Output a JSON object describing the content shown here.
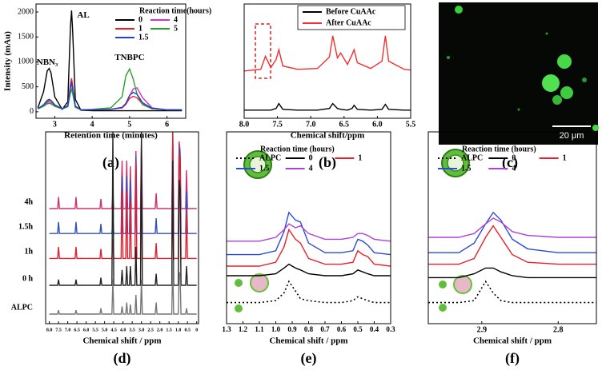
{
  "chart_data": [
    {
      "type": "line",
      "panel_label": "(a)",
      "xlabel": "Retention time (minutes)",
      "ylabel": "Intensity (mAu)",
      "xlim": [
        2.5,
        6.5
      ],
      "xticks": [
        3,
        4,
        5,
        6
      ],
      "ylim": [
        -130,
        2160
      ],
      "yticks": [
        0,
        500,
        1000,
        1500,
        2000
      ],
      "legend": "upper right",
      "legend_title": "Reaction time(hours)",
      "legend_columns": 2,
      "annotations": [
        "NBN₃",
        "AL",
        "TNBPC"
      ],
      "x": [
        2.55,
        2.7,
        2.8,
        2.85,
        2.9,
        3.0,
        3.2,
        3.35,
        3.42,
        3.45,
        3.48,
        3.55,
        3.7,
        4.0,
        4.5,
        4.8,
        4.9,
        5.0,
        5.1,
        5.2,
        5.35,
        5.6,
        6.0,
        6.4
      ],
      "series": [
        {
          "name": "0",
          "color": "#000000",
          "values": [
            80,
            400,
            820,
            870,
            780,
            300,
            50,
            200,
            1700,
            2030,
            1600,
            250,
            30,
            20,
            20,
            20,
            20,
            20,
            20,
            20,
            20,
            20,
            20,
            20
          ]
        },
        {
          "name": "4",
          "color": "#cc33cc",
          "values": [
            60,
            110,
            160,
            170,
            160,
            110,
            60,
            110,
            470,
            560,
            440,
            100,
            40,
            40,
            50,
            80,
            150,
            320,
            460,
            480,
            280,
            80,
            40,
            40
          ]
        },
        {
          "name": "1",
          "color": "#e8202a",
          "values": [
            60,
            130,
            210,
            230,
            220,
            130,
            60,
            120,
            550,
            670,
            520,
            110,
            40,
            40,
            50,
            80,
            150,
            270,
            310,
            280,
            150,
            60,
            40,
            40
          ]
        },
        {
          "name": "5",
          "color": "#2ca02c",
          "values": [
            60,
            110,
            180,
            200,
            180,
            110,
            60,
            100,
            380,
            450,
            360,
            90,
            40,
            50,
            80,
            300,
            720,
            860,
            650,
            350,
            140,
            60,
            40,
            40
          ]
        },
        {
          "name": "1.5",
          "color": "#2040d0",
          "values": [
            60,
            140,
            230,
            250,
            230,
            140,
            60,
            120,
            500,
            600,
            470,
            110,
            40,
            40,
            50,
            90,
            170,
            330,
            390,
            350,
            180,
            70,
            40,
            40
          ]
        }
      ]
    },
    {
      "type": "line",
      "panel_label": "(b)",
      "xlabel": "Chemical shift/ppm",
      "xlim": [
        8.0,
        5.5
      ],
      "xticks": [
        {
          "value": 8,
          "label": "8.0"
        },
        7.5,
        {
          "value": 7,
          "label": "7.0"
        },
        6.5,
        {
          "value": 6,
          "label": "6.0"
        },
        5.5
      ],
      "ylim": [
        0,
        140
      ],
      "legend": "upper right",
      "legend_columns": 1,
      "x": [
        8.0,
        7.75,
        7.68,
        7.6,
        7.52,
        7.48,
        7.42,
        7.2,
        6.9,
        6.72,
        6.67,
        6.6,
        6.55,
        6.45,
        6.38,
        6.35,
        6.3,
        6.1,
        5.93,
        5.88,
        5.83,
        5.6,
        5.5
      ],
      "series": [
        {
          "name": "Before CuAAc",
          "color": "#000000",
          "values": [
            10,
            10,
            10,
            10,
            12,
            18,
            11,
            10,
            10,
            12,
            18,
            12,
            11,
            10,
            12,
            16,
            11,
            10,
            11,
            17,
            11,
            10,
            10
          ]
        },
        {
          "name": "After CuAAc",
          "color": "#f03030",
          "values": [
            58,
            60,
            76,
            62,
            72,
            84,
            64,
            60,
            61,
            75,
            101,
            74,
            80,
            66,
            78,
            84,
            68,
            61,
            70,
            101,
            70,
            60,
            59
          ]
        }
      ]
    },
    {
      "type": "line",
      "panel_label": "(d)",
      "xlabel": "Chemical shift / ppm",
      "xlim": [
        8.2,
        -0.1
      ],
      "xticks": [
        {
          "value": 8,
          "label": "8.0"
        },
        7.5,
        {
          "value": 7,
          "label": "7.0"
        },
        6.5,
        {
          "value": 6,
          "label": "6.0"
        },
        5.5,
        {
          "value": 5,
          "label": "5.0"
        },
        4.5,
        {
          "value": 4,
          "label": "4.0"
        },
        3.5,
        {
          "value": 3,
          "label": "3.0"
        },
        2.5,
        {
          "value": 2,
          "label": "2.0"
        },
        1.5,
        {
          "value": 1,
          "label": "1.0"
        },
        0.5,
        0
      ],
      "ylim": [
        0,
        100
      ],
      "legend": "left",
      "x": [
        8.0,
        7.55,
        7.5,
        7.45,
        6.6,
        6.55,
        6.5,
        5.25,
        5.2,
        5.15,
        4.6,
        4.55,
        4.5,
        4.1,
        4.05,
        4.0,
        3.85,
        3.8,
        3.75,
        3.65,
        3.6,
        3.55,
        3.35,
        3.3,
        3.25,
        3.05,
        3.0,
        2.95,
        2.25,
        2.2,
        2.15,
        1.35,
        1.3,
        1.25,
        1.0,
        0.95,
        0.9,
        0.85,
        0.6,
        0.55,
        0.5,
        0.0
      ],
      "series": [
        {
          "name": "4h",
          "color": "#d0306a",
          "values": [
            60,
            60,
            66,
            60,
            60,
            66,
            60,
            60,
            65,
            60,
            60,
            68,
            60,
            60,
            85,
            60,
            60,
            85,
            60,
            60,
            82,
            60,
            60,
            90,
            60,
            60,
            95,
            60,
            60,
            68,
            60,
            60,
            98,
            60,
            60,
            95,
            90,
            60,
            60,
            80,
            60,
            60
          ]
        },
        {
          "name": "1.5h",
          "color": "#3050c0",
          "values": [
            47,
            47,
            53,
            47,
            47,
            53,
            47,
            47,
            52,
            47,
            47,
            55,
            47,
            47,
            77,
            47,
            47,
            77,
            47,
            47,
            75,
            47,
            47,
            87,
            47,
            47,
            92,
            47,
            47,
            55,
            47,
            47,
            100,
            47,
            47,
            92,
            87,
            47,
            47,
            69,
            47,
            47
          ]
        },
        {
          "name": "1h",
          "color": "#e02030",
          "values": [
            34,
            34,
            40,
            34,
            34,
            40,
            34,
            34,
            39,
            34,
            34,
            44,
            34,
            34,
            69,
            34,
            34,
            69,
            34,
            34,
            64,
            34,
            34,
            84,
            34,
            34,
            94,
            34,
            34,
            42,
            34,
            34,
            100,
            34,
            34,
            89,
            84,
            34,
            34,
            59,
            34,
            34
          ]
        },
        {
          "name": "0 h",
          "color": "#222222",
          "values": [
            20,
            20,
            23,
            20,
            20,
            23,
            20,
            20,
            24,
            20,
            20,
            100,
            20,
            20,
            28,
            20,
            20,
            30,
            20,
            20,
            30,
            20,
            20,
            40,
            20,
            20,
            100,
            20,
            20,
            26,
            20,
            20,
            85,
            20,
            20,
            75,
            70,
            20,
            20,
            30,
            20,
            20
          ]
        },
        {
          "name": "ALPC",
          "color": "#777777",
          "values": [
            5,
            5,
            7,
            5,
            5,
            7,
            5,
            5,
            8,
            5,
            5,
            23,
            5,
            5,
            9,
            5,
            5,
            11,
            5,
            5,
            10,
            5,
            5,
            15,
            5,
            5,
            23,
            5,
            5,
            11,
            5,
            5,
            33,
            5,
            5,
            27,
            25,
            5,
            5,
            8,
            5,
            5
          ]
        }
      ]
    },
    {
      "type": "line",
      "panel_label": "(e)",
      "xlabel": "Chemical shift / ppm",
      "xlim": [
        1.3,
        0.3
      ],
      "xticks": [
        1.3,
        1.2,
        1.1,
        {
          "value": 1,
          "label": "1.0"
        },
        0.9,
        0.8,
        0.7,
        0.6,
        0.5,
        0.4,
        0.3
      ],
      "ylim": [
        0,
        100
      ],
      "legend": "upper center",
      "legend_title": "Reaction time (hours)",
      "legend_columns": 3,
      "x": [
        1.3,
        1.1,
        1.0,
        0.95,
        0.92,
        0.88,
        0.85,
        0.8,
        0.7,
        0.6,
        0.53,
        0.5,
        0.47,
        0.44,
        0.4,
        0.3
      ],
      "series": [
        {
          "name": "ALPC",
          "color": "#000000",
          "style": "dotted",
          "values": [
            11,
            11,
            12,
            16,
            22,
            17,
            13,
            12,
            11,
            11,
            12,
            14,
            13,
            12,
            11,
            11
          ]
        },
        {
          "name": "0",
          "color": "#000000",
          "values": [
            25,
            25,
            26,
            29,
            31,
            29,
            28,
            26,
            25,
            25,
            26,
            28,
            27,
            26,
            25,
            25
          ]
        },
        {
          "name": "1",
          "color": "#e8202a",
          "values": [
            30,
            30,
            32,
            40,
            49,
            44,
            42,
            34,
            31,
            31,
            32,
            38,
            36,
            35,
            31,
            30
          ]
        },
        {
          "name": "1.5",
          "color": "#2a4ad8",
          "values": [
            36,
            36,
            38,
            48,
            58,
            54,
            53,
            42,
            37,
            37,
            38,
            44,
            43,
            41,
            37,
            36
          ]
        },
        {
          "name": "4",
          "color": "#b040d8",
          "values": [
            43,
            43,
            45,
            49,
            52,
            50,
            51,
            47,
            44,
            44,
            45,
            47,
            47,
            46,
            44,
            43
          ]
        }
      ]
    },
    {
      "type": "line",
      "panel_label": "(f)",
      "xlabel": "Chemical shift / ppm",
      "xlim": [
        2.97,
        2.75
      ],
      "xticks": [
        2.9,
        2.8
      ],
      "ylim": [
        0,
        100
      ],
      "legend": "upper center",
      "legend_title": "Reaction time (hours)",
      "legend_columns": 3,
      "x": [
        2.97,
        2.93,
        2.91,
        2.895,
        2.885,
        2.875,
        2.86,
        2.84,
        2.8,
        2.75
      ],
      "series": [
        {
          "name": "ALPC",
          "color": "#000000",
          "style": "dotted",
          "values": [
            11,
            11,
            12,
            22,
            16,
            12,
            11,
            11,
            11,
            11
          ]
        },
        {
          "name": "0",
          "color": "#000000",
          "values": [
            24,
            24,
            26,
            29,
            29,
            27,
            25,
            24,
            24,
            24
          ]
        },
        {
          "name": "1",
          "color": "#e8202a",
          "values": [
            31,
            31,
            34,
            45,
            51,
            45,
            36,
            32,
            31,
            31
          ]
        },
        {
          "name": "1.5",
          "color": "#2a4ad8",
          "values": [
            37,
            37,
            42,
            52,
            58,
            54,
            44,
            39,
            37,
            37
          ]
        },
        {
          "name": "4",
          "color": "#b040d8",
          "values": [
            45,
            45,
            47,
            52,
            55,
            53,
            48,
            46,
            45,
            45
          ]
        }
      ]
    }
  ],
  "image": {
    "panel_label": "(c)",
    "scale_bar": "20 μm"
  }
}
